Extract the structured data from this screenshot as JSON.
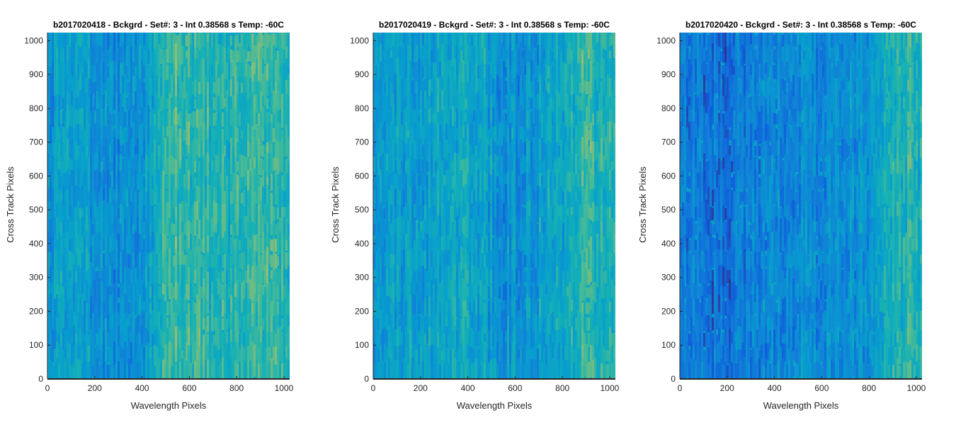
{
  "chart_data": [
    {
      "type": "heatmap",
      "title": "b2017020418 - Bckgrd - Set#: 3 - Int 0.38568 s Temp: -60C",
      "xlabel": "Wavelength Pixels",
      "ylabel": "Cross Track Pixels",
      "xlim": [
        0,
        1024
      ],
      "ylim": [
        0,
        1024
      ],
      "xticks": [
        0,
        200,
        400,
        600,
        800,
        1000
      ],
      "yticks": [
        0,
        100,
        200,
        300,
        400,
        500,
        600,
        700,
        800,
        900,
        1000
      ],
      "colormap": "parula",
      "column_profile": {
        "x": [
          0,
          100,
          200,
          300,
          400,
          450,
          480,
          520,
          600,
          700,
          800,
          900,
          950,
          1024
        ],
        "level": [
          0.38,
          0.4,
          0.38,
          0.34,
          0.38,
          0.45,
          0.62,
          0.64,
          0.6,
          0.56,
          0.58,
          0.64,
          0.62,
          0.55
        ]
      }
    },
    {
      "type": "heatmap",
      "title": "b2017020419 - Bckgrd - Set#: 3 - Int 0.38568 s Temp: -60C",
      "xlabel": "Wavelength Pixels",
      "ylabel": "Cross Track Pixels",
      "xlim": [
        0,
        1024
      ],
      "ylim": [
        0,
        1024
      ],
      "xticks": [
        0,
        200,
        400,
        600,
        800,
        1000
      ],
      "yticks": [
        0,
        100,
        200,
        300,
        400,
        500,
        600,
        700,
        800,
        900,
        1000
      ],
      "colormap": "parula",
      "column_profile": {
        "x": [
          0,
          100,
          200,
          300,
          400,
          500,
          600,
          700,
          800,
          880,
          950,
          1024
        ],
        "level": [
          0.42,
          0.44,
          0.4,
          0.45,
          0.48,
          0.38,
          0.34,
          0.4,
          0.48,
          0.6,
          0.58,
          0.52
        ]
      }
    },
    {
      "type": "heatmap",
      "title": "b2017020420 - Bckgrd - Set#: 3 - Int 0.38568 s Temp: -60C",
      "xlabel": "Wavelength Pixels",
      "ylabel": "Cross Track Pixels",
      "xlim": [
        0,
        1024
      ],
      "ylim": [
        0,
        1024
      ],
      "xticks": [
        0,
        200,
        400,
        600,
        800,
        1000
      ],
      "yticks": [
        0,
        100,
        200,
        300,
        400,
        500,
        600,
        700,
        800,
        900,
        1000
      ],
      "colormap": "parula",
      "column_profile": {
        "x": [
          0,
          100,
          200,
          300,
          400,
          500,
          600,
          700,
          800,
          880,
          950,
          1024
        ],
        "level": [
          0.26,
          0.22,
          0.2,
          0.26,
          0.3,
          0.3,
          0.3,
          0.32,
          0.38,
          0.5,
          0.6,
          0.55
        ]
      }
    }
  ]
}
